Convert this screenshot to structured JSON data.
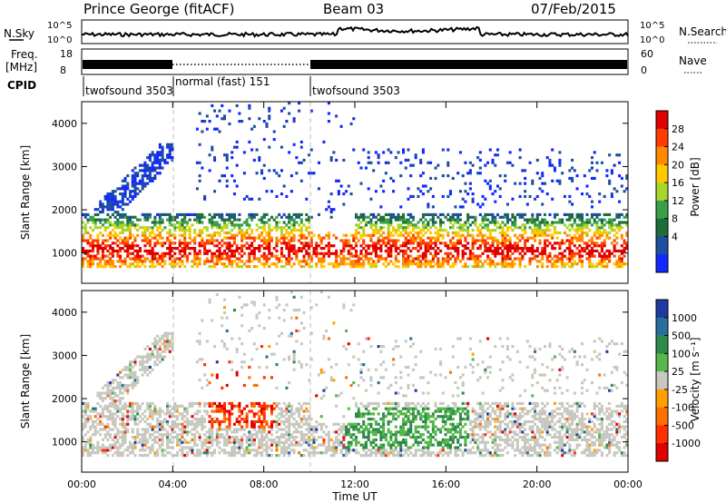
{
  "header": {
    "title": "Prince George (fitACF)",
    "beam": "Beam 03",
    "date": "07/Feb/2015"
  },
  "noise_panel": {
    "left_label": "N.Sky",
    "right_label": "N.Search",
    "left_ticks": [
      "10^5",
      "10^0"
    ],
    "right_ticks": [
      "10^5",
      "10^0"
    ]
  },
  "freq_panel": {
    "left_label_1": "Freq.",
    "left_label_2": "[MHz]",
    "right_label": "Nave",
    "left_ticks": [
      "18",
      "8"
    ],
    "right_ticks": [
      "60",
      "0"
    ]
  },
  "cpid": {
    "label": "CPID",
    "segments": [
      {
        "start_hour": 0,
        "end_hour": 4,
        "text": "twofsound 3503"
      },
      {
        "start_hour": 4,
        "end_hour": 10,
        "text": "normal (fast) 151"
      },
      {
        "start_hour": 10,
        "end_hour": 24,
        "text": "twofsound 3503"
      }
    ]
  },
  "x_axis": {
    "label": "Time UT",
    "ticks": [
      "00:00",
      "04:00",
      "08:00",
      "12:00",
      "16:00",
      "20:00",
      "00:00"
    ]
  },
  "chart_data": [
    {
      "type": "heatmap",
      "variable": "Power",
      "ylabel": "Slant Range [km]",
      "colorbar_label": "Power [dB]",
      "x_range_hours": [
        0,
        24
      ],
      "ylim": [
        300,
        4500
      ],
      "y_ticks": [
        1000,
        2000,
        3000,
        4000
      ],
      "colorbar_ticks": [
        "28",
        "24",
        "20",
        "16",
        "12",
        "8",
        "4"
      ],
      "colorbar_colors": [
        "#e00000",
        "#ff3c00",
        "#ff8a00",
        "#ffc800",
        "#a8d62c",
        "#3aa048",
        "#1e6e3a",
        "#1e4fa0",
        "#1428ff"
      ]
    },
    {
      "type": "heatmap",
      "variable": "Velocity",
      "ylabel": "Slant Range [km]",
      "colorbar_label": "Velocity [m s⁻¹]",
      "x_range_hours": [
        0,
        24
      ],
      "ylim": [
        300,
        4500
      ],
      "y_ticks": [
        1000,
        2000,
        3000,
        4000
      ],
      "colorbar_ticks": [
        "1000",
        "500",
        "100",
        "25",
        "-25",
        "-100",
        "-500",
        "-1000"
      ],
      "colorbar_colors": [
        "#1e3ca0",
        "#2a6ea0",
        "#2e8a4a",
        "#56b84a",
        "#c8c8c0",
        "#ffa000",
        "#ff7000",
        "#ff3000",
        "#e00000"
      ]
    }
  ]
}
